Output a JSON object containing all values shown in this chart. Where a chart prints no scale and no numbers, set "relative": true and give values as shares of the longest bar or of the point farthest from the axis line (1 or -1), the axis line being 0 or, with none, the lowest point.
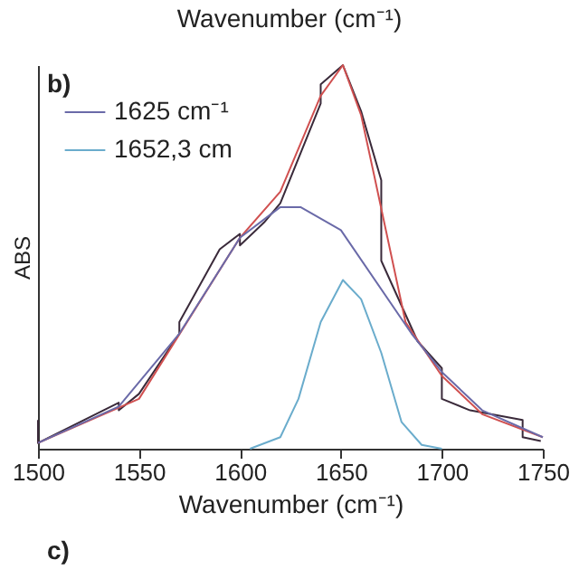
{
  "chart_data": {
    "type": "line",
    "relative": true,
    "xlabel": "Wavenumber (cm⁻¹)",
    "ylabel": "ABS",
    "xlim": [
      1500,
      1750
    ],
    "xticks": [
      1500,
      1550,
      1600,
      1650,
      1700,
      1750
    ],
    "legend": "top left",
    "grid": false,
    "annotations": [
      "Wavenumber (cm⁻¹)",
      "b)",
      "c)"
    ],
    "series": [
      {
        "color": "#3a2a3a",
        "x": [
          1500,
          1500,
          1540,
          1540,
          1550,
          1570,
          1570,
          1590,
          1600,
          1600,
          1612,
          1620,
          1640,
          1640,
          1651,
          1660,
          1670,
          1670,
          1688,
          1700,
          1700,
          1714,
          1740,
          1740,
          1749
        ],
        "values": [
          0.075,
          0.015,
          0.12,
          0.1,
          0.143,
          0.3,
          0.33,
          0.52,
          0.56,
          0.53,
          0.59,
          0.64,
          0.9,
          0.95,
          1.0,
          0.88,
          0.7,
          0.49,
          0.28,
          0.21,
          0.13,
          0.1,
          0.075,
          0.03,
          0.02
        ]
      },
      {
        "color": "#d05050",
        "x": [
          1500,
          1550,
          1600,
          1620,
          1640,
          1651,
          1660,
          1667,
          1682,
          1700,
          1720,
          1750
        ],
        "values": [
          0.015,
          0.13,
          0.55,
          0.67,
          0.92,
          1.0,
          0.87,
          0.7,
          0.33,
          0.19,
          0.09,
          0.03
        ]
      },
      {
        "name": "1625 cm⁻¹",
        "color": "#6a6aa8",
        "x": [
          1500,
          1540,
          1570,
          1600,
          1620,
          1630,
          1650,
          1685,
          1700,
          1720,
          1750
        ],
        "values": [
          0.015,
          0.11,
          0.3,
          0.55,
          0.63,
          0.63,
          0.57,
          0.3,
          0.2,
          0.1,
          0.03
        ]
      },
      {
        "name": "1652,3 cm",
        "color": "#6aaccc",
        "x": [
          1605,
          1620,
          1629,
          1640,
          1651,
          1660,
          1670,
          1680,
          1690,
          1700
        ],
        "values": [
          0,
          0.03,
          0.13,
          0.33,
          0.44,
          0.39,
          0.25,
          0.07,
          0.01,
          0
        ]
      }
    ]
  }
}
